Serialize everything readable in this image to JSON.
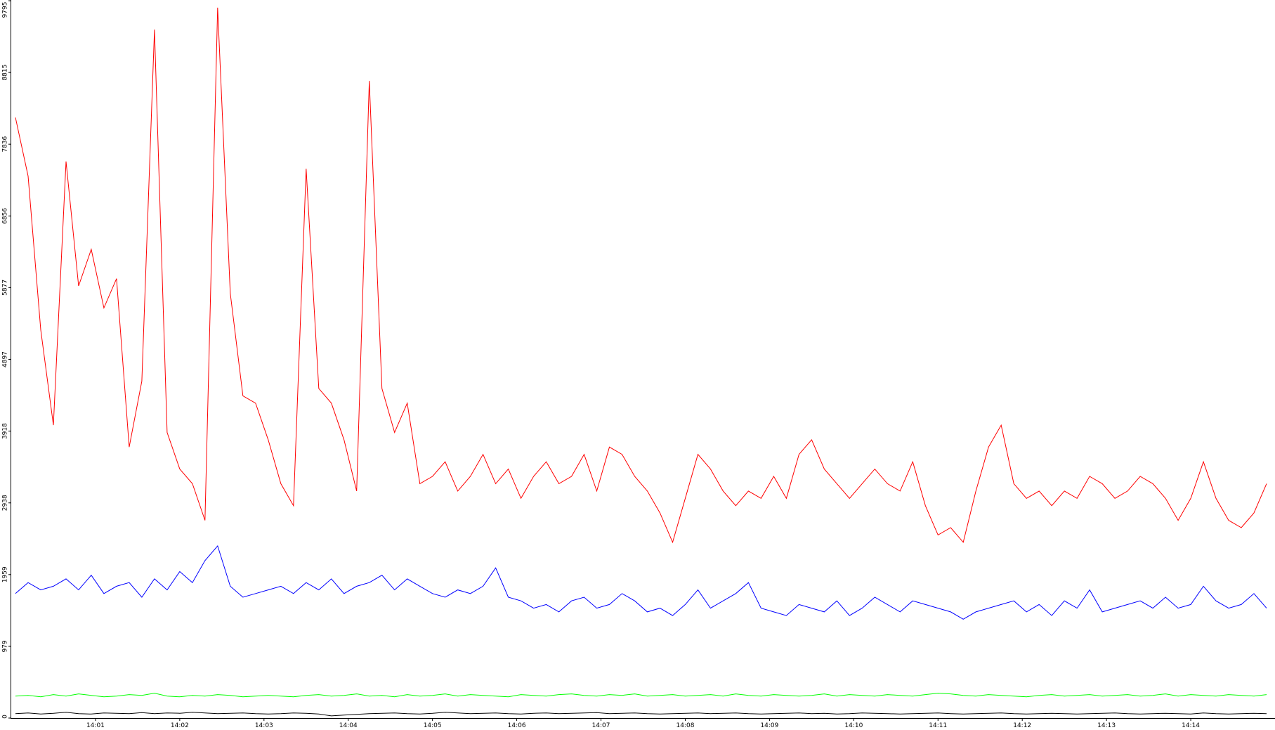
{
  "chart_data": {
    "type": "line",
    "x": [
      0.05,
      0.2,
      0.35,
      0.5,
      0.65,
      0.8,
      0.95,
      1.1,
      1.25,
      1.4,
      1.55,
      1.7,
      1.85,
      2.0,
      2.15,
      2.3,
      2.45,
      2.6,
      2.75,
      2.9,
      3.05,
      3.2,
      3.35,
      3.5,
      3.65,
      3.8,
      3.95,
      4.1,
      4.25,
      4.4,
      4.55,
      4.7,
      4.85,
      5.0,
      5.15,
      5.3,
      5.45,
      5.6,
      5.75,
      5.9,
      6.05,
      6.2,
      6.35,
      6.5,
      6.65,
      6.8,
      6.95,
      7.1,
      7.25,
      7.4,
      7.55,
      7.7,
      7.85,
      8.0,
      8.15,
      8.3,
      8.45,
      8.6,
      8.75,
      8.9,
      9.05,
      9.2,
      9.35,
      9.5,
      9.65,
      9.8,
      9.95,
      10.1,
      10.25,
      10.4,
      10.55,
      10.7,
      10.85,
      11.0,
      11.15,
      11.3,
      11.45,
      11.6,
      11.75,
      11.9,
      12.05,
      12.2,
      12.35,
      12.5,
      12.65,
      12.8,
      12.95,
      13.1,
      13.25,
      13.4,
      13.55,
      13.7,
      13.85,
      14.0,
      14.15,
      14.3,
      14.45,
      14.6,
      14.75,
      14.9
    ],
    "series": [
      {
        "color": "#ff0000",
        "values": [
          8200,
          7400,
          5300,
          4000,
          7600,
          5900,
          6400,
          5600,
          6000,
          3700,
          4600,
          9400,
          3900,
          3400,
          3200,
          2700,
          9700,
          5800,
          4400,
          4300,
          3800,
          3200,
          2900,
          7500,
          4500,
          4300,
          3800,
          3100,
          8700,
          4500,
          3900,
          4300,
          3200,
          3300,
          3500,
          3100,
          3300,
          3600,
          3200,
          3400,
          3000,
          3300,
          3500,
          3200,
          3300,
          3600,
          3100,
          3700,
          3600,
          3300,
          3100,
          2800,
          2400,
          3000,
          3600,
          3400,
          3100,
          2900,
          3100,
          3000,
          3300,
          3000,
          3600,
          3800,
          3400,
          3200,
          3000,
          3200,
          3400,
          3200,
          3100,
          3500,
          2900,
          2500,
          2600,
          2400,
          3100,
          3700,
          4000,
          3200,
          3000,
          3100,
          2900,
          3100,
          3000,
          3300,
          3200,
          3000,
          3100,
          3300,
          3200,
          3000,
          2700,
          3000,
          3500,
          3000,
          2700,
          2600,
          2800,
          3200
        ]
      },
      {
        "color": "#0000ff",
        "values": [
          1700,
          1850,
          1750,
          1800,
          1900,
          1750,
          1950,
          1700,
          1800,
          1850,
          1650,
          1900,
          1750,
          2000,
          1850,
          2150,
          2350,
          1800,
          1650,
          1700,
          1750,
          1800,
          1700,
          1850,
          1750,
          1900,
          1700,
          1800,
          1850,
          1950,
          1750,
          1900,
          1800,
          1700,
          1650,
          1750,
          1700,
          1800,
          2050,
          1650,
          1600,
          1500,
          1550,
          1450,
          1600,
          1650,
          1500,
          1550,
          1700,
          1600,
          1450,
          1500,
          1400,
          1550,
          1750,
          1500,
          1600,
          1700,
          1850,
          1500,
          1450,
          1400,
          1550,
          1500,
          1450,
          1600,
          1400,
          1500,
          1650,
          1550,
          1450,
          1600,
          1550,
          1500,
          1450,
          1350,
          1450,
          1500,
          1550,
          1600,
          1450,
          1550,
          1400,
          1600,
          1500,
          1750,
          1450,
          1500,
          1550,
          1600,
          1500,
          1650,
          1500,
          1550,
          1800,
          1600,
          1500,
          1550,
          1700,
          1500
        ]
      },
      {
        "color": "#00ff00",
        "values": [
          300,
          310,
          290,
          320,
          300,
          330,
          310,
          290,
          300,
          320,
          310,
          340,
          300,
          290,
          310,
          300,
          320,
          310,
          290,
          300,
          310,
          300,
          290,
          310,
          320,
          300,
          310,
          330,
          300,
          310,
          290,
          320,
          300,
          310,
          330,
          300,
          320,
          310,
          300,
          290,
          320,
          310,
          300,
          320,
          330,
          310,
          300,
          320,
          310,
          330,
          300,
          310,
          320,
          300,
          310,
          320,
          300,
          330,
          310,
          300,
          320,
          310,
          300,
          310,
          330,
          300,
          320,
          310,
          300,
          320,
          310,
          300,
          320,
          340,
          330,
          310,
          300,
          320,
          310,
          300,
          290,
          310,
          320,
          300,
          310,
          320,
          300,
          310,
          320,
          300,
          310,
          330,
          300,
          320,
          310,
          300,
          320,
          310,
          300,
          320
        ]
      },
      {
        "color": "#000000",
        "values": [
          60,
          70,
          55,
          65,
          80,
          60,
          55,
          70,
          65,
          60,
          75,
          60,
          70,
          65,
          80,
          70,
          60,
          65,
          70,
          60,
          55,
          60,
          70,
          65,
          55,
          30,
          40,
          50,
          60,
          65,
          70,
          60,
          55,
          65,
          80,
          70,
          60,
          65,
          70,
          60,
          55,
          65,
          70,
          60,
          65,
          70,
          75,
          60,
          65,
          70,
          60,
          55,
          60,
          65,
          70,
          60,
          65,
          70,
          60,
          55,
          60,
          65,
          70,
          60,
          65,
          55,
          60,
          70,
          65,
          60,
          55,
          60,
          65,
          70,
          60,
          55,
          60,
          65,
          70,
          60,
          55,
          60,
          65,
          60,
          55,
          60,
          65,
          70,
          60,
          55,
          60,
          65,
          60,
          55,
          70,
          60,
          55,
          60,
          65,
          60
        ]
      }
    ],
    "xlim": [
      0,
      15
    ],
    "xticks": [
      {
        "value": 1,
        "label": "14:01"
      },
      {
        "value": 2,
        "label": "14:02"
      },
      {
        "value": 3,
        "label": "14:03"
      },
      {
        "value": 4,
        "label": "14:04"
      },
      {
        "value": 5,
        "label": "14:05"
      },
      {
        "value": 6,
        "label": "14:06"
      },
      {
        "value": 7,
        "label": "14:07"
      },
      {
        "value": 8,
        "label": "14:08"
      },
      {
        "value": 9,
        "label": "14:09"
      },
      {
        "value": 10,
        "label": "14:10"
      },
      {
        "value": 11,
        "label": "14:11"
      },
      {
        "value": 12,
        "label": "14:12"
      },
      {
        "value": 13,
        "label": "14:13"
      },
      {
        "value": 14,
        "label": "14:14"
      }
    ],
    "ylim": [
      0,
      9795
    ],
    "yticks": [
      0,
      979,
      1959,
      2938,
      3918,
      4897,
      5877,
      6856,
      7836,
      8815,
      9795
    ]
  }
}
